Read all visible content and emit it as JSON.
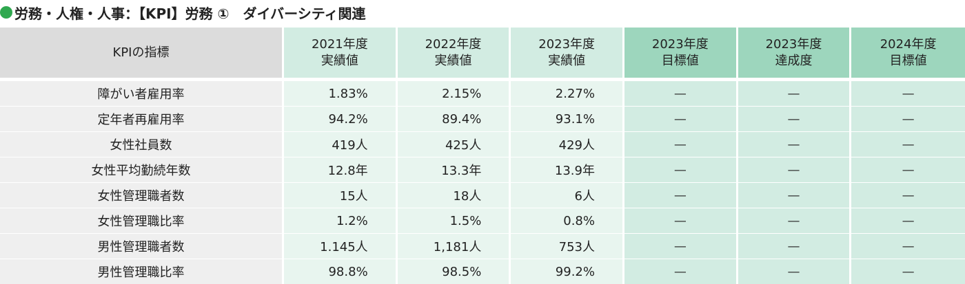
{
  "title": "労務・人権・人事：【KPI】労務 ①　ダイバーシティ関連",
  "colors": {
    "bullet": "#2fa84f",
    "header_label_bg": "#dcdcdc",
    "header_actual_bg": "#d2ece2",
    "header_target_bg": "#9dd6bd",
    "row_label_bg": "#efefef",
    "row_actual_bg": "#e8f5ef",
    "row_target_bg": "#d2ece2"
  },
  "table": {
    "label_header": "KPIの指標",
    "columns": [
      {
        "year": "2021年度",
        "kind": "実績値"
      },
      {
        "year": "2022年度",
        "kind": "実績値"
      },
      {
        "year": "2023年度",
        "kind": "実績値"
      },
      {
        "year": "2023年度",
        "kind": "目標値"
      },
      {
        "year": "2023年度",
        "kind": "達成度"
      },
      {
        "year": "2024年度",
        "kind": "目標値"
      }
    ],
    "rows": [
      {
        "label": "障がい者雇用率",
        "values": [
          "1.83%",
          "2.15%",
          "2.27%",
          "—",
          "—",
          "—"
        ]
      },
      {
        "label": "定年者再雇用率",
        "values": [
          "94.2%",
          "89.4%",
          "93.1%",
          "—",
          "—",
          "—"
        ]
      },
      {
        "label": "女性社員数",
        "values": [
          "419人",
          "425人",
          "429人",
          "—",
          "—",
          "—"
        ]
      },
      {
        "label": "女性平均勤続年数",
        "values": [
          "12.8年",
          "13.3年",
          "13.9年",
          "—",
          "—",
          "—"
        ]
      },
      {
        "label": "女性管理職者数",
        "values": [
          "15人",
          "18人",
          "6人",
          "—",
          "—",
          "—"
        ]
      },
      {
        "label": "女性管理職比率",
        "values": [
          "1.2%",
          "1.5%",
          "0.8%",
          "—",
          "—",
          "—"
        ]
      },
      {
        "label": "男性管理職者数",
        "values": [
          "1.145人",
          "1,181人",
          "753人",
          "—",
          "—",
          "—"
        ]
      },
      {
        "label": "男性管理職比率",
        "values": [
          "98.8%",
          "98.5%",
          "99.2%",
          "—",
          "—",
          "—"
        ]
      }
    ]
  }
}
